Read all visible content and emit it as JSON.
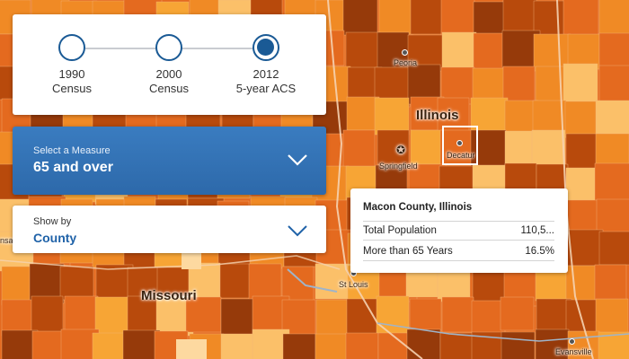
{
  "timeline": {
    "stops": [
      {
        "line1": "1990",
        "line2": "Census",
        "selected": false
      },
      {
        "line1": "2000",
        "line2": "Census",
        "selected": false
      },
      {
        "line1": "2012",
        "line2": "5-year ACS",
        "selected": true
      }
    ]
  },
  "measure": {
    "label": "Select a Measure",
    "value": "65 and over"
  },
  "showby": {
    "label": "Show by",
    "value": "County"
  },
  "tooltip": {
    "title": "Macon County, Illinois",
    "rows": [
      {
        "label": "Total Population",
        "value": "110,5..."
      },
      {
        "label": "More than 65 Years",
        "value": "16.5%"
      }
    ]
  },
  "map": {
    "states": [
      "Illinois",
      "Missouri"
    ],
    "cities": [
      "Peoria",
      "Springfield",
      "Decatur",
      "St Louis",
      "Evansville"
    ],
    "edge_labels": [
      "nsas"
    ],
    "colors": {
      "dark": "#b84a0c",
      "darker": "#963a0a",
      "mid": "#e46a1f",
      "orange": "#f08a25",
      "light": "#f7a535",
      "lighter": "#fbc069",
      "palest": "#fdd9a0",
      "selected_outline": "#ffffff"
    }
  },
  "icons": [
    "chevron-down-icon",
    "star-icon"
  ]
}
